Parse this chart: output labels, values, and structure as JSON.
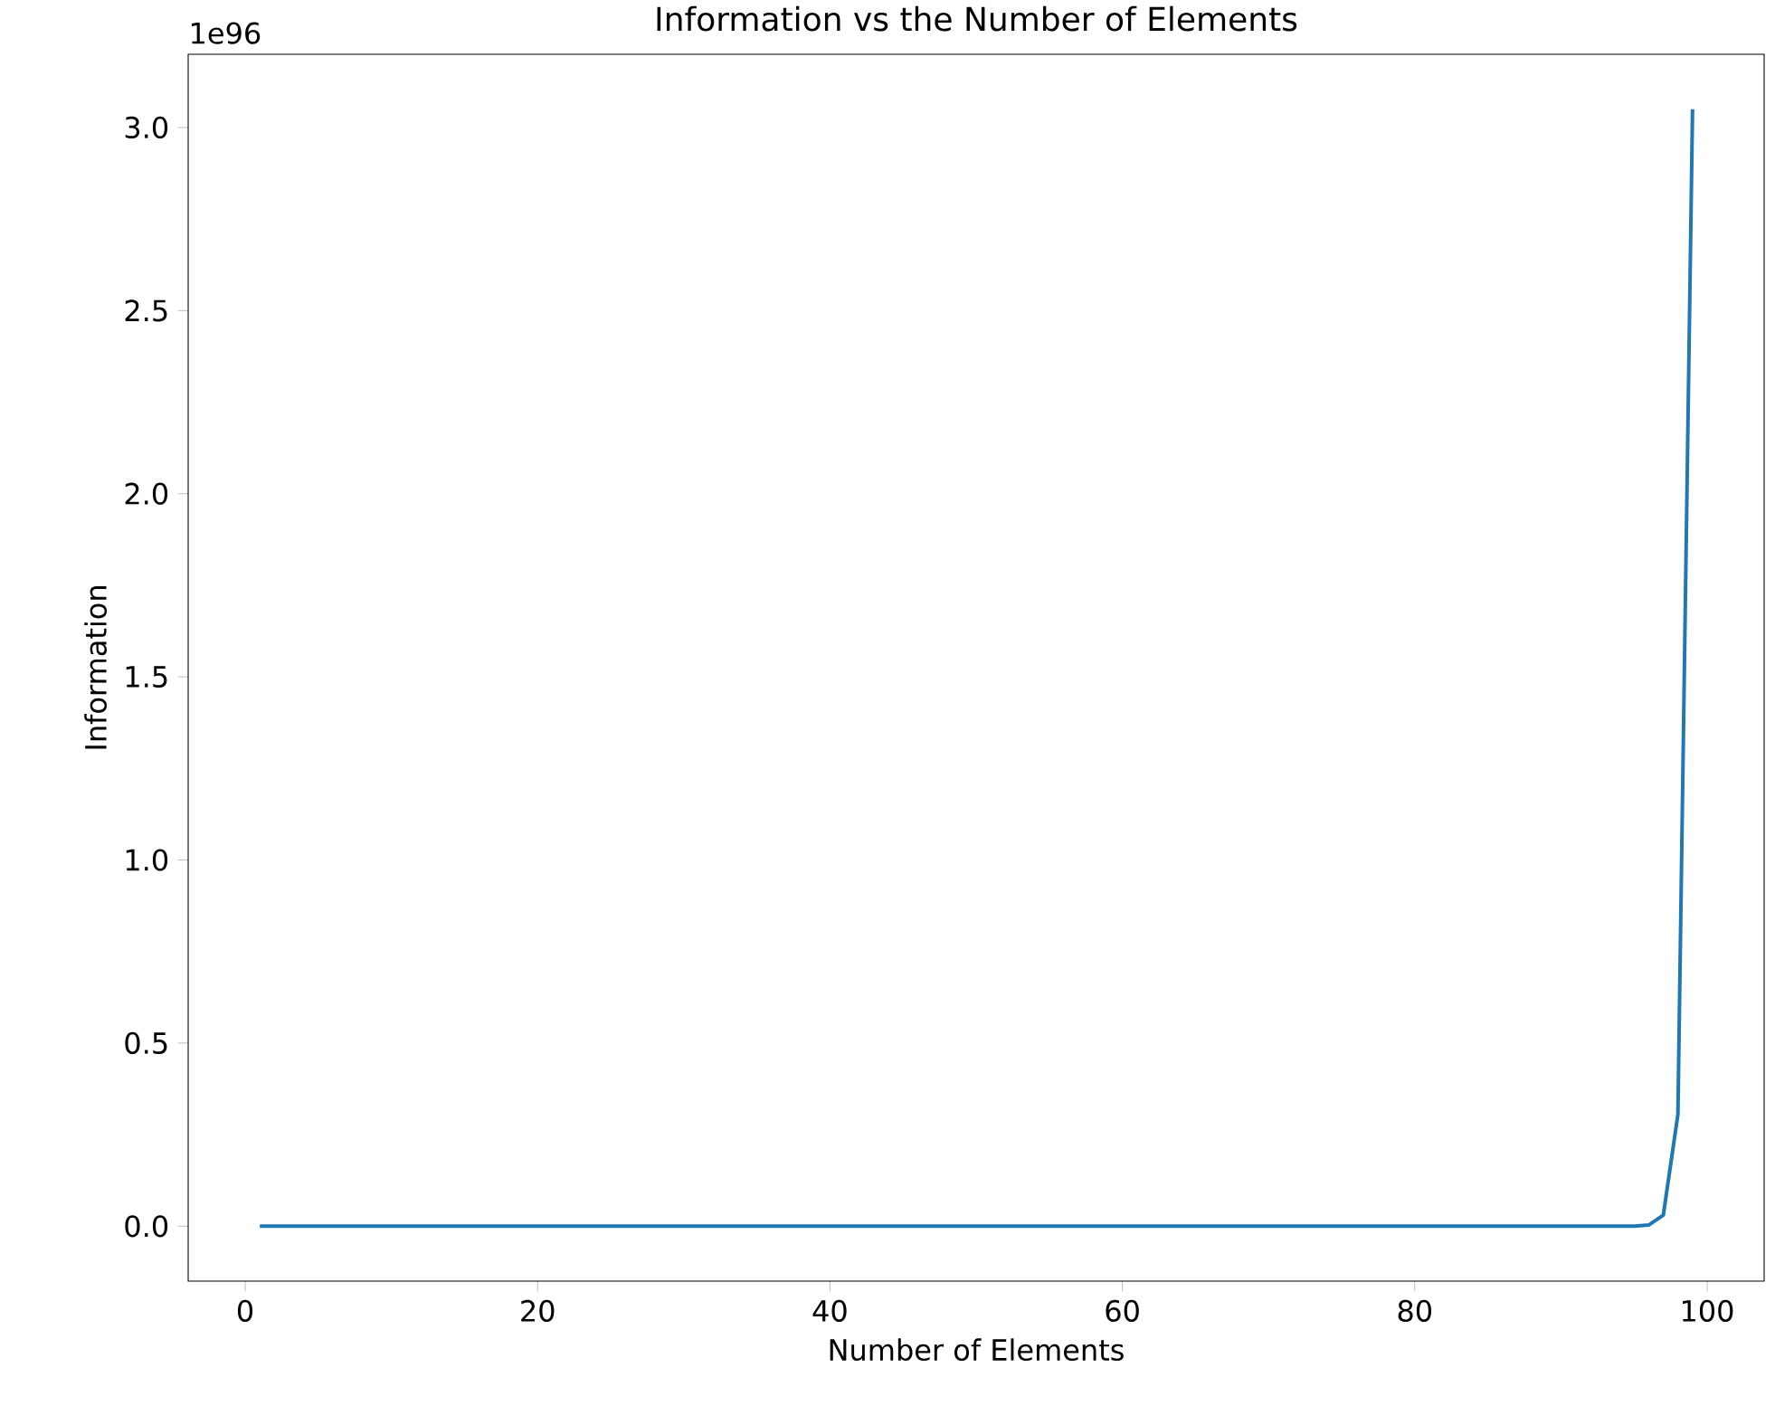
{
  "chart_data": {
    "type": "line",
    "title": "Information vs the Number of Elements",
    "xlabel": "Number of Elements",
    "ylabel": "Information",
    "annotations": [
      "1e96"
    ],
    "x": [
      1,
      10,
      20,
      30,
      40,
      50,
      60,
      70,
      80,
      90,
      95,
      96,
      97,
      98,
      99
    ],
    "series": [
      {
        "color": "#1f77b4",
        "values": [
          0,
          0,
          0,
          0,
          0,
          0,
          0,
          0,
          0,
          0,
          0,
          0.003,
          0.03,
          0.305,
          3.05
        ]
      }
    ],
    "xlim": [
      -3.9,
      103.9
    ],
    "ylim": [
      -0.15,
      3.2
    ],
    "xticks": [
      0,
      20,
      40,
      60,
      80,
      100
    ],
    "yticks": [
      {
        "value": 0,
        "label": "0.0"
      },
      {
        "value": 0.5,
        "label": "0.5"
      },
      {
        "value": 1,
        "label": "1.0"
      },
      {
        "value": 1.5,
        "label": "1.5"
      },
      {
        "value": 2,
        "label": "2.0"
      },
      {
        "value": 2.5,
        "label": "2.5"
      },
      {
        "value": 3,
        "label": "3.0"
      }
    ],
    "grid": false,
    "legend": false,
    "marker": "none",
    "line_style": "solid"
  }
}
